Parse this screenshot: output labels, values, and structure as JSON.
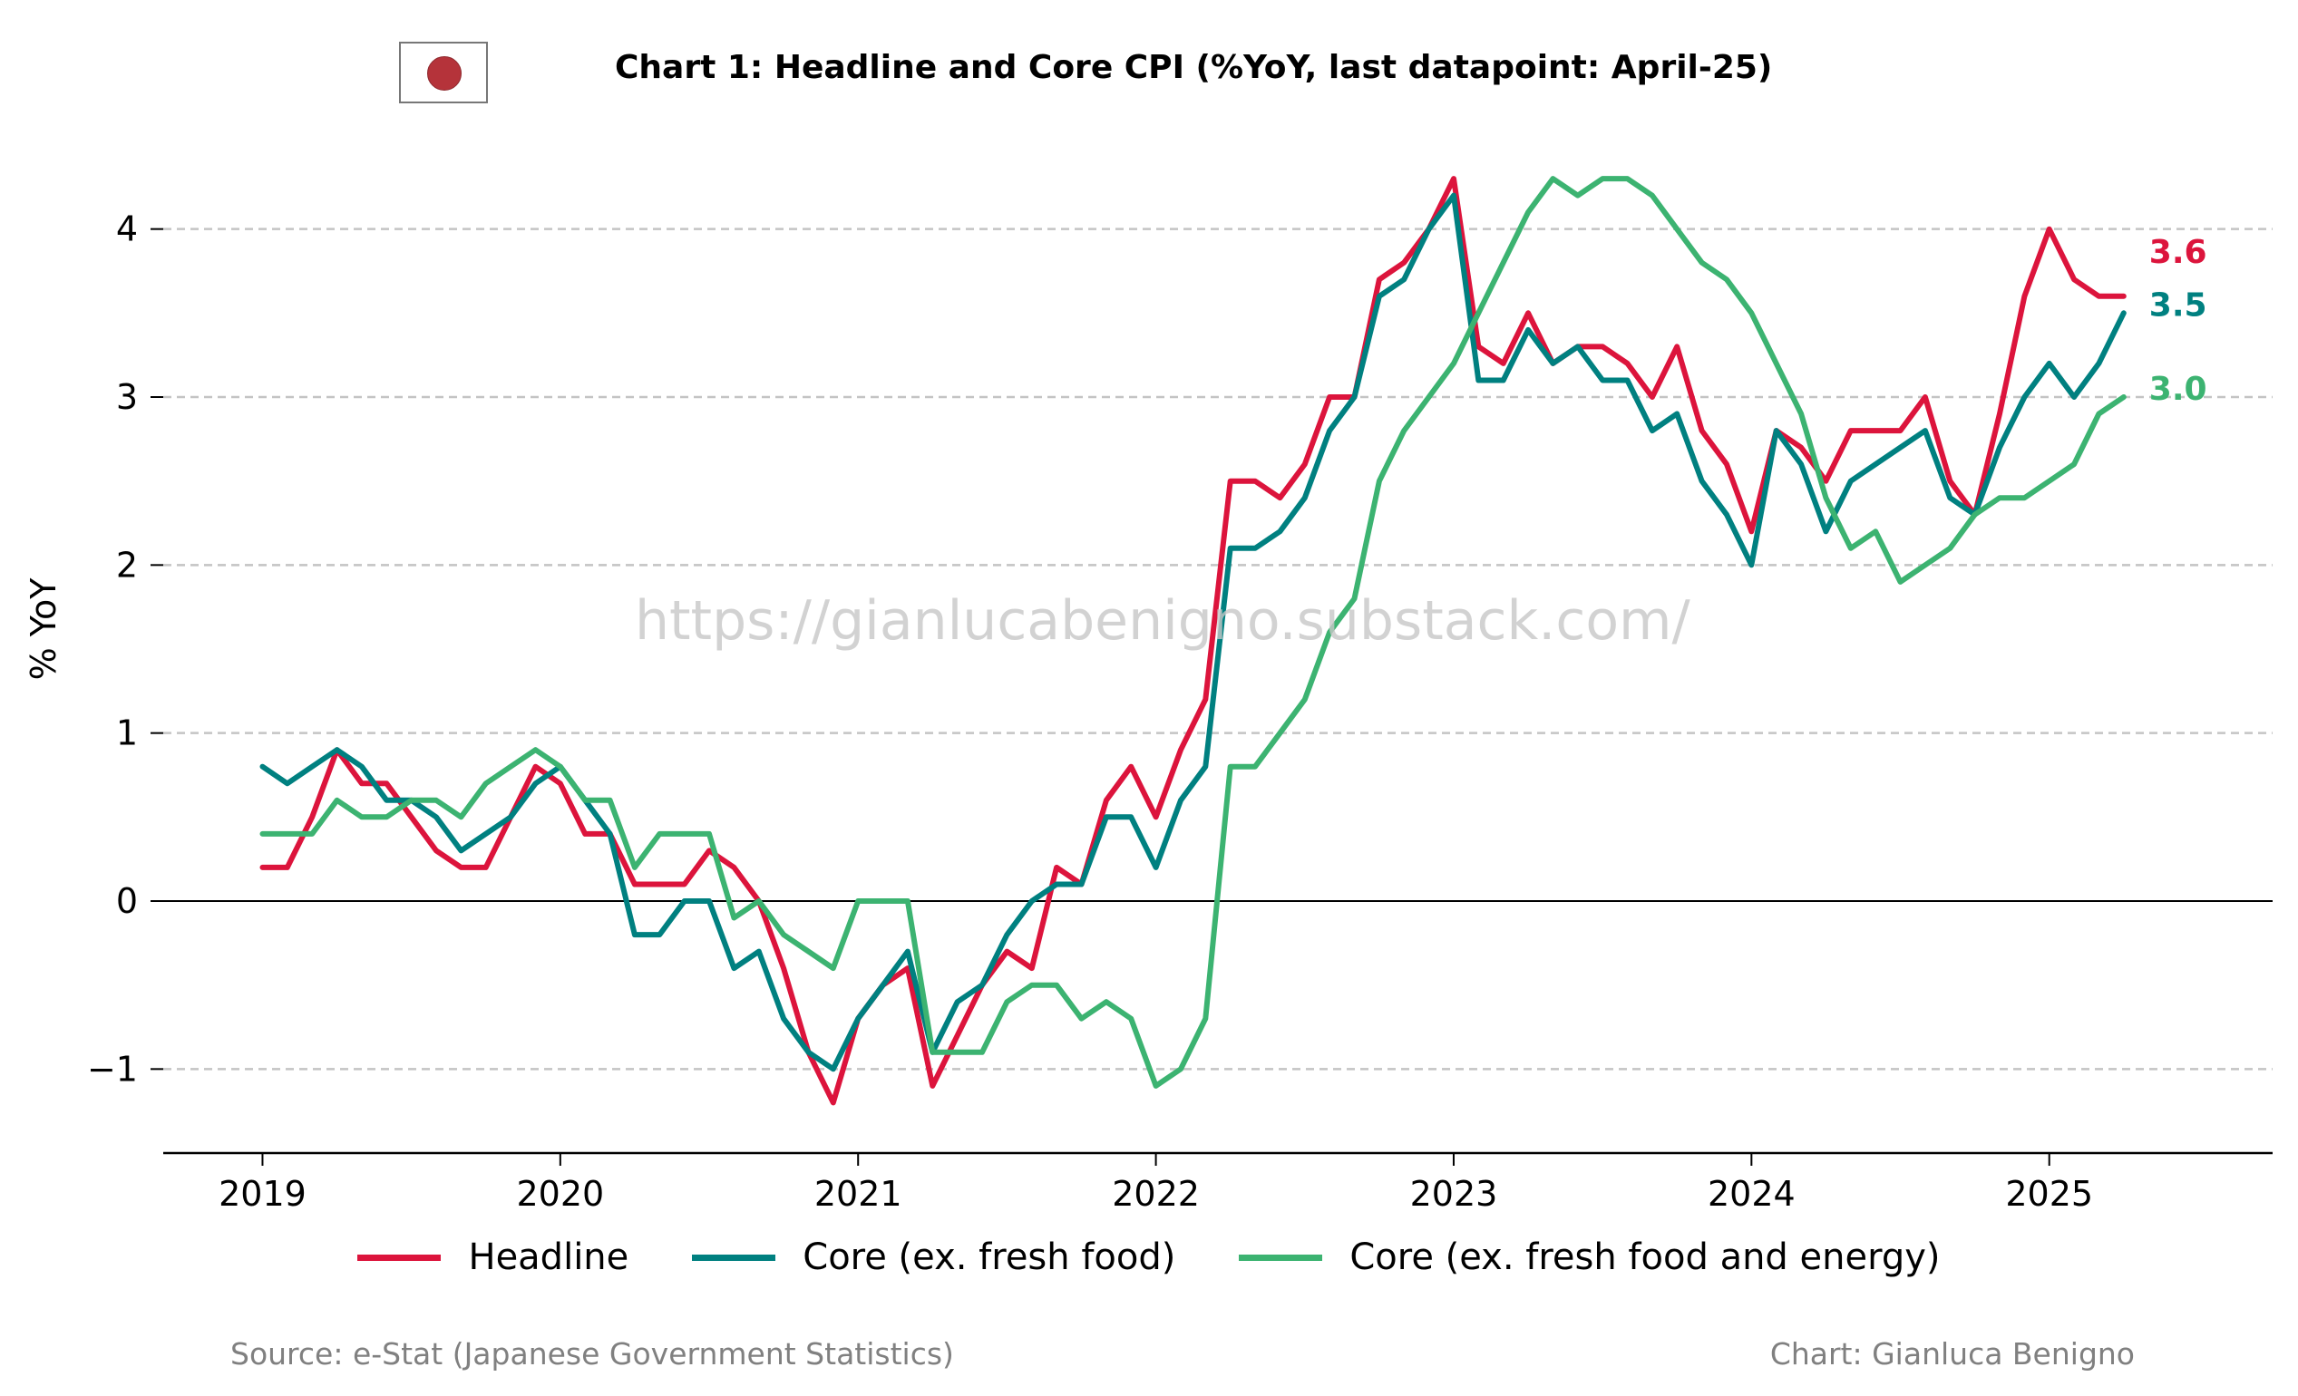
{
  "title": "Chart 1: Headline and Core CPI (%YoY, last datapoint: April-25)",
  "watermark": "https://gianlucabenigno.substack.com/",
  "source": "Source: e-Stat (Japanese Government Statistics)",
  "credit": "Chart: Gianluca Benigno",
  "flag_icon": "japan-flag-icon",
  "chart_data": {
    "type": "line",
    "ylabel": "% YoY",
    "xlabel": "",
    "x_start": "2019-01",
    "x_end": "2025-04",
    "xlim": [
      "2018-09",
      "2025-10"
    ],
    "ylim": [
      -1.5,
      4.5
    ],
    "yticks": [
      "−1",
      "0",
      "1",
      "2",
      "3",
      "4"
    ],
    "xticks": [
      "2019",
      "2020",
      "2021",
      "2022",
      "2023",
      "2024",
      "2025"
    ],
    "grid": "horizontal dashed",
    "legend": "bottom",
    "series": [
      {
        "name": "Headline",
        "color": "#dc143c",
        "last_label": "3.6",
        "values": [
          0.2,
          0.2,
          0.5,
          0.9,
          0.7,
          0.7,
          0.5,
          0.3,
          0.2,
          0.2,
          0.5,
          0.8,
          0.7,
          0.4,
          0.4,
          0.1,
          0.1,
          0.1,
          0.3,
          0.2,
          0.0,
          -0.4,
          -0.9,
          -1.2,
          -0.7,
          -0.5,
          -0.4,
          -1.1,
          -0.8,
          -0.5,
          -0.3,
          -0.4,
          0.2,
          0.1,
          0.6,
          0.8,
          0.5,
          0.9,
          1.2,
          2.5,
          2.5,
          2.4,
          2.6,
          3.0,
          3.0,
          3.7,
          3.8,
          4.0,
          4.3,
          3.3,
          3.2,
          3.5,
          3.2,
          3.3,
          3.3,
          3.2,
          3.0,
          3.3,
          2.8,
          2.6,
          2.2,
          2.8,
          2.7,
          2.5,
          2.8,
          2.8,
          2.8,
          3.0,
          2.5,
          2.3,
          2.9,
          3.6,
          4.0,
          3.7,
          3.6,
          3.6
        ]
      },
      {
        "name": "Core (ex. fresh food)",
        "color": "#008080",
        "last_label": "3.5",
        "values": [
          0.8,
          0.7,
          0.8,
          0.9,
          0.8,
          0.6,
          0.6,
          0.5,
          0.3,
          0.4,
          0.5,
          0.7,
          0.8,
          0.6,
          0.4,
          -0.2,
          -0.2,
          0.0,
          0.0,
          -0.4,
          -0.3,
          -0.7,
          -0.9,
          -1.0,
          -0.7,
          -0.5,
          -0.3,
          -0.9,
          -0.6,
          -0.5,
          -0.2,
          0.0,
          0.1,
          0.1,
          0.5,
          0.5,
          0.2,
          0.6,
          0.8,
          2.1,
          2.1,
          2.2,
          2.4,
          2.8,
          3.0,
          3.6,
          3.7,
          4.0,
          4.2,
          3.1,
          3.1,
          3.4,
          3.2,
          3.3,
          3.1,
          3.1,
          2.8,
          2.9,
          2.5,
          2.3,
          2.0,
          2.8,
          2.6,
          2.2,
          2.5,
          2.6,
          2.7,
          2.8,
          2.4,
          2.3,
          2.7,
          3.0,
          3.2,
          3.0,
          3.2,
          3.5
        ]
      },
      {
        "name": "Core (ex. fresh food and energy)",
        "color": "#3cb371",
        "last_label": "3.0",
        "values": [
          0.4,
          0.4,
          0.4,
          0.6,
          0.5,
          0.5,
          0.6,
          0.6,
          0.5,
          0.7,
          0.8,
          0.9,
          0.8,
          0.6,
          0.6,
          0.2,
          0.4,
          0.4,
          0.4,
          -0.1,
          0.0,
          -0.2,
          -0.3,
          -0.4,
          0.0,
          0.0,
          0.0,
          -0.9,
          -0.9,
          -0.9,
          -0.6,
          -0.5,
          -0.5,
          -0.7,
          -0.6,
          -0.7,
          -1.1,
          -1.0,
          -0.7,
          0.8,
          0.8,
          1.0,
          1.2,
          1.6,
          1.8,
          2.5,
          2.8,
          3.0,
          3.2,
          3.5,
          3.8,
          4.1,
          4.3,
          4.2,
          4.3,
          4.3,
          4.2,
          4.0,
          3.8,
          3.7,
          3.5,
          3.2,
          2.9,
          2.4,
          2.1,
          2.2,
          1.9,
          2.0,
          2.1,
          2.3,
          2.4,
          2.4,
          2.5,
          2.6,
          2.9,
          3.0
        ]
      }
    ]
  }
}
